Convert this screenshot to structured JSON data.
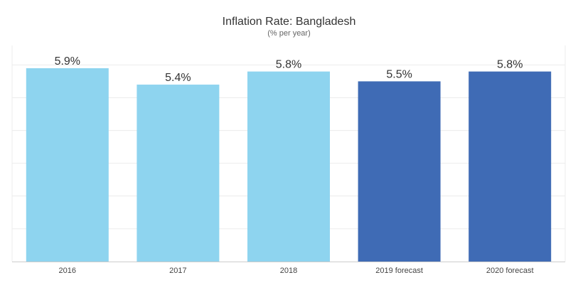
{
  "chart_data": {
    "type": "bar",
    "title": "Inflation Rate: Bangladesh",
    "subtitle": "(% per year)",
    "categories": [
      "2016",
      "2017",
      "2018",
      "2019 forecast",
      "2020 forecast"
    ],
    "values": [
      5.9,
      5.4,
      5.8,
      5.5,
      5.8
    ],
    "data_labels": [
      "5.9%",
      "5.4%",
      "5.8%",
      "5.5%",
      "5.8%"
    ],
    "colors": [
      "#8ed4ef",
      "#8ed4ef",
      "#8ed4ef",
      "#3f6bb5",
      "#3f6bb5"
    ],
    "ylim": [
      0,
      6
    ],
    "grid": true,
    "xlabel": "",
    "ylabel": ""
  }
}
